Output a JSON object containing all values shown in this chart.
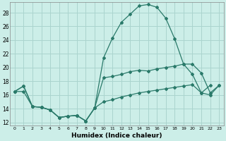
{
  "xlabel": "Humidex (Indice chaleur)",
  "bg_color": "#cceee8",
  "grid_color": "#aad4ce",
  "line_color": "#2a7a6a",
  "xlim": [
    -0.5,
    23.5
  ],
  "ylim": [
    11.5,
    29.5
  ],
  "xticks": [
    0,
    1,
    2,
    3,
    4,
    5,
    6,
    7,
    8,
    9,
    10,
    11,
    12,
    13,
    14,
    15,
    16,
    17,
    18,
    19,
    20,
    21,
    22,
    23
  ],
  "yticks": [
    12,
    14,
    16,
    18,
    20,
    22,
    24,
    26,
    28
  ],
  "x": [
    0,
    1,
    2,
    3,
    4,
    5,
    6,
    7,
    8,
    9,
    10,
    11,
    12,
    13,
    14,
    15,
    16,
    17,
    18,
    19,
    20,
    21,
    22,
    23
  ],
  "line_top": [
    16.5,
    17.3,
    14.3,
    14.2,
    13.8,
    12.7,
    12.9,
    13.0,
    12.2,
    14.1,
    21.4,
    24.3,
    26.6,
    27.8,
    29.0,
    29.2,
    28.8,
    27.2,
    24.2,
    20.5,
    19.0,
    16.3,
    17.4,
    null
  ],
  "line_mid": [
    16.5,
    17.3,
    14.3,
    14.2,
    13.8,
    12.7,
    12.9,
    13.0,
    12.2,
    14.1,
    18.5,
    18.7,
    19.0,
    19.4,
    19.6,
    19.5,
    19.8,
    20.0,
    20.2,
    20.5,
    20.5,
    19.2,
    16.3,
    17.4
  ],
  "line_bot": [
    16.5,
    16.5,
    14.3,
    14.2,
    13.8,
    12.7,
    12.9,
    13.0,
    12.2,
    14.1,
    15.0,
    15.3,
    15.7,
    16.0,
    16.3,
    16.5,
    16.7,
    16.9,
    17.1,
    17.3,
    17.5,
    16.3,
    16.0,
    17.4
  ]
}
